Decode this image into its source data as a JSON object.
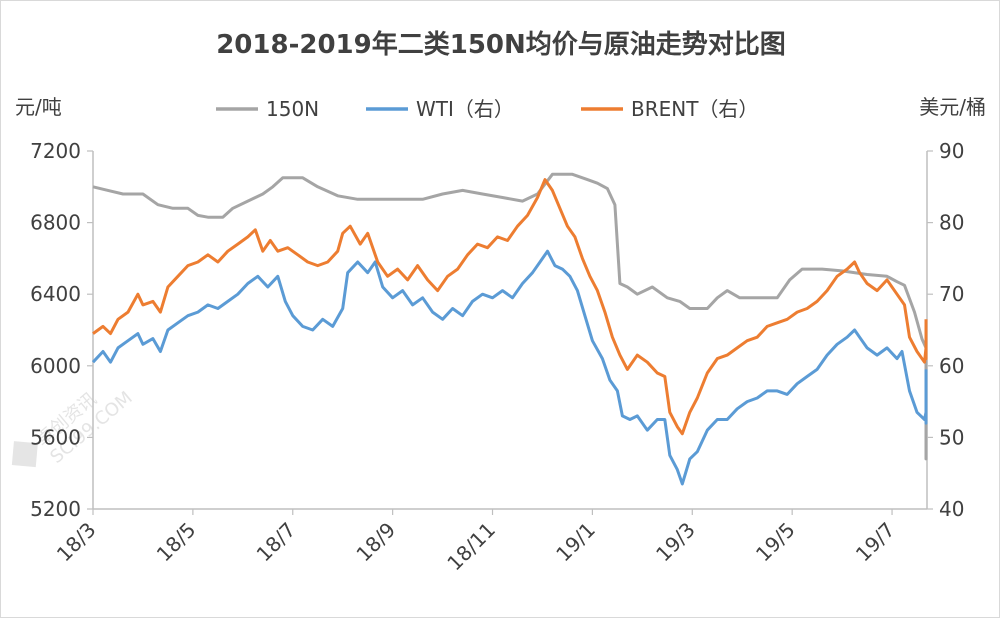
{
  "chart_data": {
    "type": "line",
    "title": "2018-2019年二类150N均价与原油走势对比图",
    "y_left_unit": "元/吨",
    "y_right_unit": "美元/桶",
    "y_left_ticks": [
      "5200",
      "5600",
      "6000",
      "6400",
      "6800",
      "7200"
    ],
    "y_right_ticks": [
      "40",
      "50",
      "60",
      "70",
      "80",
      "90"
    ],
    "ylim_left": [
      5200,
      7200
    ],
    "ylim_right": [
      40,
      90
    ],
    "x_ticks": [
      "18/3",
      "18/5",
      "18/7",
      "18/9",
      "18/11",
      "19/1",
      "19/3",
      "19/5",
      "19/7"
    ],
    "xlim": [
      0,
      16.7
    ],
    "x_unit_note": "months from 2018-03",
    "legend": [
      "150N",
      "WTI（右）",
      "BRENT（右）"
    ],
    "legend_position": "top",
    "colors": {
      "150N": "#a5a5a5",
      "WTI": "#5b9bd5",
      "BRENT": "#ed7d31"
    },
    "series": [
      {
        "name": "150N",
        "axis": "left",
        "color": "#a5a5a5",
        "points": [
          [
            0.0,
            7000
          ],
          [
            0.3,
            6980
          ],
          [
            0.6,
            6960
          ],
          [
            1.0,
            6960
          ],
          [
            1.3,
            6900
          ],
          [
            1.6,
            6880
          ],
          [
            1.9,
            6880
          ],
          [
            2.1,
            6840
          ],
          [
            2.3,
            6830
          ],
          [
            2.6,
            6830
          ],
          [
            2.8,
            6880
          ],
          [
            3.1,
            6920
          ],
          [
            3.4,
            6960
          ],
          [
            3.6,
            7000
          ],
          [
            3.8,
            7050
          ],
          [
            4.2,
            7050
          ],
          [
            4.5,
            7000
          ],
          [
            4.9,
            6950
          ],
          [
            5.3,
            6930
          ],
          [
            6.0,
            6930
          ],
          [
            6.6,
            6930
          ],
          [
            7.0,
            6960
          ],
          [
            7.4,
            6980
          ],
          [
            7.8,
            6960
          ],
          [
            8.2,
            6940
          ],
          [
            8.6,
            6920
          ],
          [
            8.9,
            6960
          ],
          [
            9.2,
            7070
          ],
          [
            9.6,
            7070
          ],
          [
            9.9,
            7040
          ],
          [
            10.1,
            7020
          ],
          [
            10.3,
            6990
          ],
          [
            10.45,
            6900
          ],
          [
            10.55,
            6460
          ],
          [
            10.7,
            6440
          ],
          [
            10.9,
            6400
          ],
          [
            11.2,
            6440
          ],
          [
            11.5,
            6380
          ],
          [
            11.75,
            6360
          ],
          [
            11.95,
            6320
          ],
          [
            12.3,
            6320
          ],
          [
            12.5,
            6380
          ],
          [
            12.7,
            6420
          ],
          [
            12.95,
            6380
          ],
          [
            13.3,
            6380
          ],
          [
            13.7,
            6380
          ],
          [
            13.95,
            6480
          ],
          [
            14.2,
            6540
          ],
          [
            14.6,
            6540
          ],
          [
            15.0,
            6530
          ],
          [
            15.5,
            6510
          ],
          [
            15.9,
            6500
          ],
          [
            16.1,
            6470
          ],
          [
            16.25,
            6450
          ],
          [
            16.45,
            6300
          ],
          [
            16.6,
            6150
          ],
          [
            16.75,
            6100
          ],
          [
            16.85,
            5520
          ],
          [
            17.05,
            5500
          ],
          [
            17.25,
            5480
          ],
          [
            17.4,
            5560
          ]
        ]
      },
      {
        "name": "WTI（右）",
        "axis": "right",
        "color": "#5b9bd5",
        "points": [
          [
            0.0,
            60.5
          ],
          [
            0.2,
            62.0
          ],
          [
            0.35,
            60.5
          ],
          [
            0.5,
            62.5
          ],
          [
            0.7,
            63.5
          ],
          [
            0.9,
            64.5
          ],
          [
            1.0,
            63.0
          ],
          [
            1.2,
            63.8
          ],
          [
            1.35,
            62.0
          ],
          [
            1.5,
            65.0
          ],
          [
            1.7,
            66.0
          ],
          [
            1.9,
            67.0
          ],
          [
            2.1,
            67.5
          ],
          [
            2.3,
            68.5
          ],
          [
            2.5,
            68.0
          ],
          [
            2.7,
            69.0
          ],
          [
            2.9,
            70.0
          ],
          [
            3.1,
            71.5
          ],
          [
            3.3,
            72.5
          ],
          [
            3.5,
            71.0
          ],
          [
            3.7,
            72.5
          ],
          [
            3.85,
            69.0
          ],
          [
            4.0,
            67.0
          ],
          [
            4.2,
            65.5
          ],
          [
            4.4,
            65.0
          ],
          [
            4.6,
            66.5
          ],
          [
            4.8,
            65.5
          ],
          [
            5.0,
            68.0
          ],
          [
            5.1,
            73.0
          ],
          [
            5.3,
            74.5
          ],
          [
            5.5,
            73.0
          ],
          [
            5.65,
            74.5
          ],
          [
            5.8,
            71.0
          ],
          [
            6.0,
            69.5
          ],
          [
            6.2,
            70.5
          ],
          [
            6.4,
            68.5
          ],
          [
            6.6,
            69.5
          ],
          [
            6.8,
            67.5
          ],
          [
            7.0,
            66.5
          ],
          [
            7.2,
            68.0
          ],
          [
            7.4,
            67.0
          ],
          [
            7.6,
            69.0
          ],
          [
            7.8,
            70.0
          ],
          [
            8.0,
            69.5
          ],
          [
            8.2,
            70.5
          ],
          [
            8.4,
            69.5
          ],
          [
            8.6,
            71.5
          ],
          [
            8.8,
            73.0
          ],
          [
            8.95,
            74.5
          ],
          [
            9.1,
            76.0
          ],
          [
            9.25,
            74.0
          ],
          [
            9.4,
            73.5
          ],
          [
            9.55,
            72.5
          ],
          [
            9.7,
            70.5
          ],
          [
            9.85,
            67.0
          ],
          [
            10.0,
            63.5
          ],
          [
            10.2,
            61.0
          ],
          [
            10.35,
            58.0
          ],
          [
            10.5,
            56.5
          ],
          [
            10.6,
            53.0
          ],
          [
            10.75,
            52.5
          ],
          [
            10.9,
            53.0
          ],
          [
            11.1,
            51.0
          ],
          [
            11.3,
            52.5
          ],
          [
            11.45,
            52.5
          ],
          [
            11.55,
            47.5
          ],
          [
            11.7,
            45.5
          ],
          [
            11.8,
            43.5
          ],
          [
            11.95,
            47.0
          ],
          [
            12.1,
            48.0
          ],
          [
            12.3,
            51.0
          ],
          [
            12.5,
            52.5
          ],
          [
            12.7,
            52.5
          ],
          [
            12.9,
            54.0
          ],
          [
            13.1,
            55.0
          ],
          [
            13.3,
            55.5
          ],
          [
            13.5,
            56.5
          ],
          [
            13.7,
            56.5
          ],
          [
            13.9,
            56.0
          ],
          [
            14.1,
            57.5
          ],
          [
            14.3,
            58.5
          ],
          [
            14.5,
            59.5
          ],
          [
            14.7,
            61.5
          ],
          [
            14.9,
            63.0
          ],
          [
            15.1,
            64.0
          ],
          [
            15.25,
            65.0
          ],
          [
            15.35,
            64.0
          ],
          [
            15.5,
            62.5
          ],
          [
            15.7,
            61.5
          ],
          [
            15.9,
            62.5
          ],
          [
            16.1,
            61.0
          ],
          [
            16.2,
            62.0
          ],
          [
            16.35,
            56.5
          ],
          [
            16.5,
            53.5
          ],
          [
            16.65,
            52.5
          ],
          [
            16.8,
            53.5
          ],
          [
            16.95,
            52.0
          ],
          [
            17.05,
            56.5
          ],
          [
            17.2,
            58.0
          ],
          [
            17.35,
            57.0
          ],
          [
            17.45,
            59.5
          ]
        ]
      },
      {
        "name": "BRENT（右）",
        "axis": "right",
        "color": "#ed7d31",
        "points": [
          [
            0.0,
            64.5
          ],
          [
            0.2,
            65.5
          ],
          [
            0.35,
            64.5
          ],
          [
            0.5,
            66.5
          ],
          [
            0.7,
            67.5
          ],
          [
            0.9,
            70.0
          ],
          [
            1.0,
            68.5
          ],
          [
            1.2,
            69.0
          ],
          [
            1.35,
            67.5
          ],
          [
            1.5,
            71.0
          ],
          [
            1.7,
            72.5
          ],
          [
            1.9,
            74.0
          ],
          [
            2.1,
            74.5
          ],
          [
            2.3,
            75.5
          ],
          [
            2.5,
            74.5
          ],
          [
            2.7,
            76.0
          ],
          [
            2.9,
            77.0
          ],
          [
            3.1,
            78.0
          ],
          [
            3.25,
            79.0
          ],
          [
            3.4,
            76.0
          ],
          [
            3.55,
            77.5
          ],
          [
            3.7,
            76.0
          ],
          [
            3.9,
            76.5
          ],
          [
            4.1,
            75.5
          ],
          [
            4.3,
            74.5
          ],
          [
            4.5,
            74.0
          ],
          [
            4.7,
            74.5
          ],
          [
            4.9,
            76.0
          ],
          [
            5.0,
            78.5
          ],
          [
            5.15,
            79.5
          ],
          [
            5.35,
            77.0
          ],
          [
            5.5,
            78.5
          ],
          [
            5.7,
            74.5
          ],
          [
            5.9,
            72.5
          ],
          [
            6.1,
            73.5
          ],
          [
            6.3,
            72.0
          ],
          [
            6.5,
            74.0
          ],
          [
            6.7,
            72.0
          ],
          [
            6.9,
            70.5
          ],
          [
            7.1,
            72.5
          ],
          [
            7.3,
            73.5
          ],
          [
            7.5,
            75.5
          ],
          [
            7.7,
            77.0
          ],
          [
            7.9,
            76.5
          ],
          [
            8.1,
            78.0
          ],
          [
            8.3,
            77.5
          ],
          [
            8.5,
            79.5
          ],
          [
            8.7,
            81.0
          ],
          [
            8.9,
            83.5
          ],
          [
            9.05,
            86.0
          ],
          [
            9.2,
            84.5
          ],
          [
            9.35,
            82.0
          ],
          [
            9.5,
            79.5
          ],
          [
            9.65,
            78.0
          ],
          [
            9.8,
            75.0
          ],
          [
            9.95,
            72.5
          ],
          [
            10.1,
            70.5
          ],
          [
            10.25,
            67.5
          ],
          [
            10.4,
            64.0
          ],
          [
            10.55,
            61.5
          ],
          [
            10.7,
            59.5
          ],
          [
            10.9,
            61.5
          ],
          [
            11.1,
            60.5
          ],
          [
            11.3,
            59.0
          ],
          [
            11.45,
            58.5
          ],
          [
            11.55,
            53.5
          ],
          [
            11.7,
            51.5
          ],
          [
            11.8,
            50.5
          ],
          [
            11.95,
            53.5
          ],
          [
            12.1,
            55.5
          ],
          [
            12.3,
            59.0
          ],
          [
            12.5,
            61.0
          ],
          [
            12.7,
            61.5
          ],
          [
            12.9,
            62.5
          ],
          [
            13.1,
            63.5
          ],
          [
            13.3,
            64.0
          ],
          [
            13.5,
            65.5
          ],
          [
            13.7,
            66.0
          ],
          [
            13.9,
            66.5
          ],
          [
            14.1,
            67.5
          ],
          [
            14.3,
            68.0
          ],
          [
            14.5,
            69.0
          ],
          [
            14.7,
            70.5
          ],
          [
            14.9,
            72.5
          ],
          [
            15.1,
            73.5
          ],
          [
            15.25,
            74.5
          ],
          [
            15.35,
            73.0
          ],
          [
            15.5,
            71.5
          ],
          [
            15.7,
            70.5
          ],
          [
            15.9,
            72.0
          ],
          [
            16.1,
            70.0
          ],
          [
            16.25,
            68.5
          ],
          [
            16.35,
            64.0
          ],
          [
            16.5,
            62.0
          ],
          [
            16.65,
            60.5
          ],
          [
            16.8,
            62.5
          ],
          [
            16.95,
            61.0
          ],
          [
            17.05,
            64.5
          ],
          [
            17.2,
            66.0
          ],
          [
            17.3,
            64.0
          ],
          [
            17.45,
            66.5
          ]
        ]
      }
    ]
  },
  "watermark": {
    "text": "卓创资讯",
    "subtext": "SCI99.COM",
    "logo_icon": "sci99-logo-icon"
  }
}
